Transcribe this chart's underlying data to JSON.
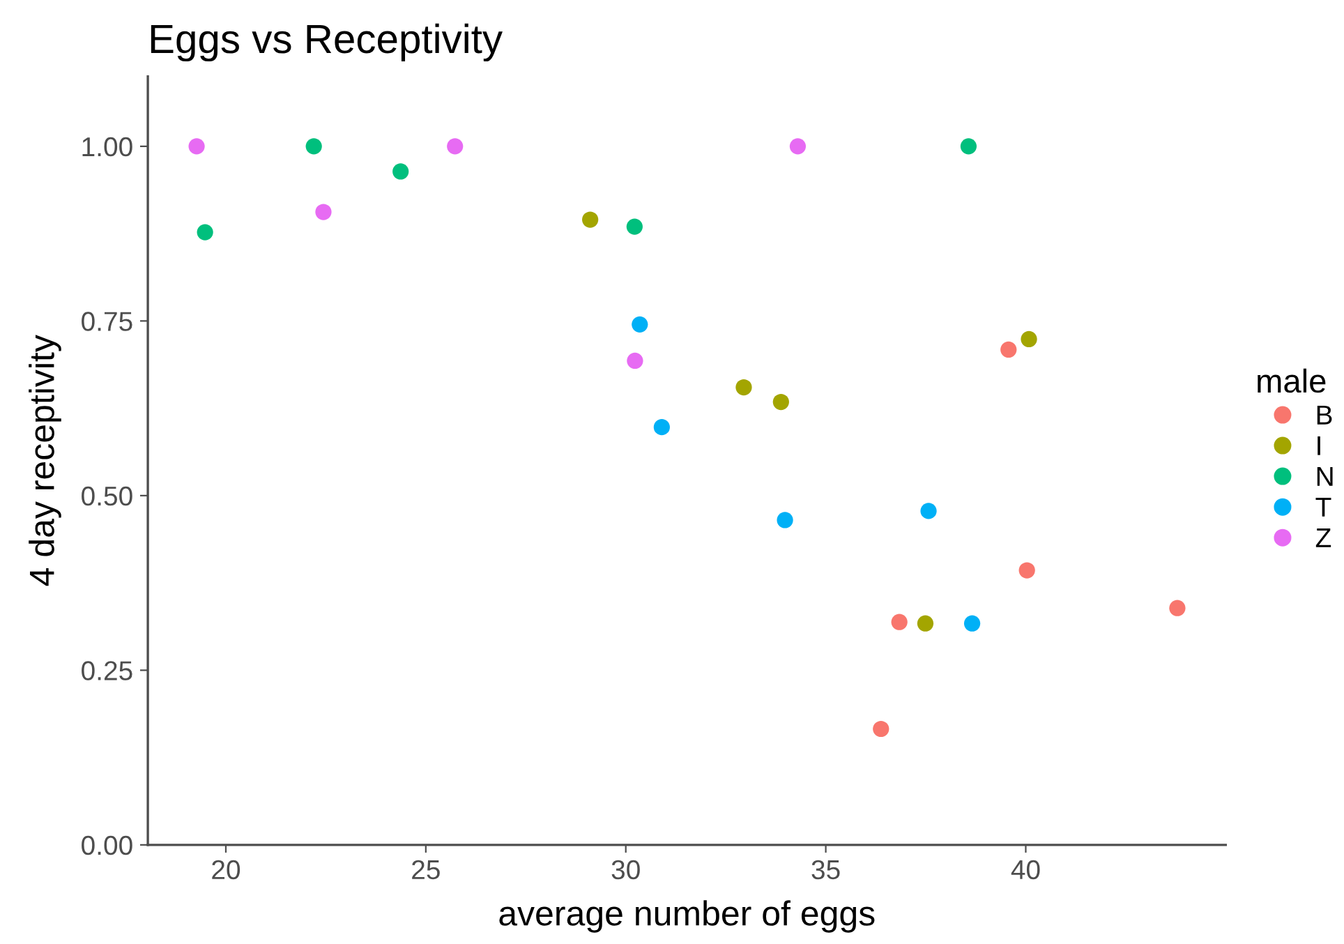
{
  "chart_data": {
    "type": "scatter",
    "title": "Eggs vs Receptivity",
    "xlabel": "average number of eggs",
    "ylabel": "4 day receptivity",
    "legend_title": "male",
    "xlim": [
      18.05,
      45
    ],
    "xticks": [
      20,
      25,
      30,
      35,
      40
    ],
    "ylim": [
      0,
      1.1
    ],
    "yticks": [
      {
        "value": 0,
        "label": "0.00"
      },
      {
        "value": 0.25,
        "label": "0.25"
      },
      {
        "value": 0.5,
        "label": "0.50"
      },
      {
        "value": 0.75,
        "label": "0.75"
      },
      {
        "value": 1,
        "label": "1.00"
      }
    ],
    "grid": false,
    "legend": "right",
    "marker": "circle",
    "series": [
      {
        "name": "B",
        "color": "#f8766d",
        "x": [
          39.57,
          40.03,
          43.79,
          36.84,
          36.38
        ],
        "values": [
          0.709,
          0.393,
          0.339,
          0.319,
          0.166
        ]
      },
      {
        "name": "I",
        "color": "#a3a500",
        "x": [
          29.11,
          40.08,
          32.95,
          33.88,
          37.49
        ],
        "values": [
          0.895,
          0.724,
          0.655,
          0.634,
          0.317
        ]
      },
      {
        "name": "N",
        "color": "#00bf7d",
        "x": [
          19.48,
          22.2,
          24.37,
          30.22,
          38.57
        ],
        "values": [
          0.877,
          1.0,
          0.964,
          0.885,
          1.0
        ]
      },
      {
        "name": "T",
        "color": "#00b0f6",
        "x": [
          30.35,
          30.9,
          33.98,
          37.57,
          38.66
        ],
        "values": [
          0.745,
          0.598,
          0.465,
          0.478,
          0.317
        ]
      },
      {
        "name": "Z",
        "color": "#e76bf3",
        "x": [
          19.27,
          22.44,
          25.73,
          30.23,
          34.3
        ],
        "values": [
          1.0,
          0.906,
          1.0,
          0.693,
          1.0
        ]
      }
    ]
  }
}
